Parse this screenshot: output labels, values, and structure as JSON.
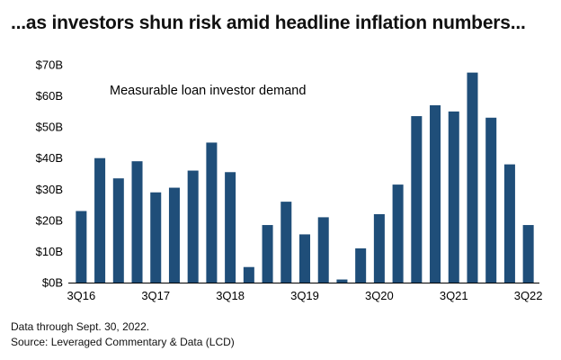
{
  "headline": "...as investors shun risk amid headline inflation numbers...",
  "chart_data": {
    "type": "bar",
    "title": "",
    "annotation": "Measurable loan investor demand",
    "xlabel": "",
    "ylabel": "",
    "ylim": [
      0,
      70
    ],
    "yticks": [
      0,
      10,
      20,
      30,
      40,
      50,
      60,
      70
    ],
    "ytick_labels": [
      "$0B",
      "$10B",
      "$20B",
      "$30B",
      "$40B",
      "$50B",
      "$60B",
      "$70B"
    ],
    "grid": false,
    "bar_color": "#1f4e79",
    "categories": [
      "3Q16",
      "4Q16",
      "1Q17",
      "2Q17",
      "3Q17",
      "4Q17",
      "1Q18",
      "2Q18",
      "3Q18",
      "4Q18",
      "1Q19",
      "2Q19",
      "3Q19",
      "4Q19",
      "1Q20",
      "2Q20",
      "3Q20",
      "4Q20",
      "1Q21",
      "2Q21",
      "3Q21",
      "4Q21",
      "1Q22",
      "2Q22",
      "3Q22"
    ],
    "xtick_labels": [
      "3Q16",
      "3Q17",
      "3Q18",
      "3Q19",
      "3Q20",
      "3Q21",
      "3Q22"
    ],
    "values": [
      23,
      40,
      33.5,
      39,
      29,
      30.5,
      36,
      45,
      35.5,
      5,
      18.5,
      26,
      15.5,
      21,
      1,
      11,
      22,
      31.5,
      53.5,
      57,
      55,
      67.5,
      53,
      38,
      18.5
    ]
  },
  "footer": {
    "note": "Data through Sept. 30, 2022.",
    "source": "Source: Leveraged Commentary & Data (LCD)"
  }
}
